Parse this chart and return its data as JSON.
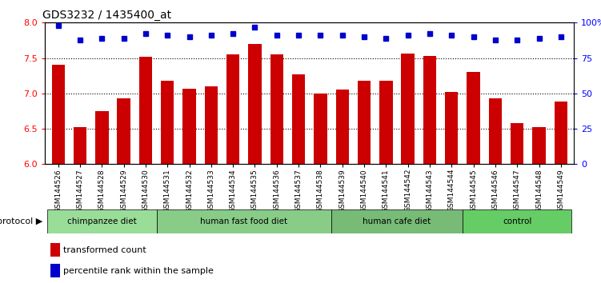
{
  "title": "GDS3232 / 1435400_at",
  "samples": [
    "GSM144526",
    "GSM144527",
    "GSM144528",
    "GSM144529",
    "GSM144530",
    "GSM144531",
    "GSM144532",
    "GSM144533",
    "GSM144534",
    "GSM144535",
    "GSM144536",
    "GSM144537",
    "GSM144538",
    "GSM144539",
    "GSM144540",
    "GSM144541",
    "GSM144542",
    "GSM144543",
    "GSM144544",
    "GSM144545",
    "GSM144546",
    "GSM144547",
    "GSM144548",
    "GSM144549"
  ],
  "bar_values": [
    7.4,
    6.52,
    6.75,
    6.93,
    7.52,
    7.18,
    7.07,
    7.1,
    7.55,
    7.7,
    7.55,
    7.27,
    7.0,
    7.05,
    7.18,
    7.18,
    7.56,
    7.53,
    7.02,
    7.3,
    6.93,
    6.58,
    6.52,
    6.88
  ],
  "percentile_values": [
    98,
    88,
    89,
    89,
    92,
    91,
    90,
    91,
    92,
    97,
    91,
    91,
    91,
    91,
    90,
    89,
    91,
    92,
    91,
    90,
    88,
    88,
    89,
    90
  ],
  "groups": [
    {
      "label": "chimpanzee diet",
      "start": 0,
      "end": 5,
      "color": "#99dd99"
    },
    {
      "label": "human fast food diet",
      "start": 5,
      "end": 13,
      "color": "#88cc88"
    },
    {
      "label": "human cafe diet",
      "start": 13,
      "end": 19,
      "color": "#77bb77"
    },
    {
      "label": "control",
      "start": 19,
      "end": 24,
      "color": "#66cc66"
    }
  ],
  "bar_color": "#cc0000",
  "dot_color": "#0000cc",
  "ylim_left": [
    6.0,
    8.0
  ],
  "ylim_right": [
    0,
    100
  ],
  "yticks_left": [
    6.0,
    6.5,
    7.0,
    7.5,
    8.0
  ],
  "yticks_right": [
    0,
    25,
    50,
    75,
    100
  ],
  "grid_values": [
    6.5,
    7.0,
    7.5
  ],
  "title_fontsize": 10,
  "protocol_label": "protocol"
}
